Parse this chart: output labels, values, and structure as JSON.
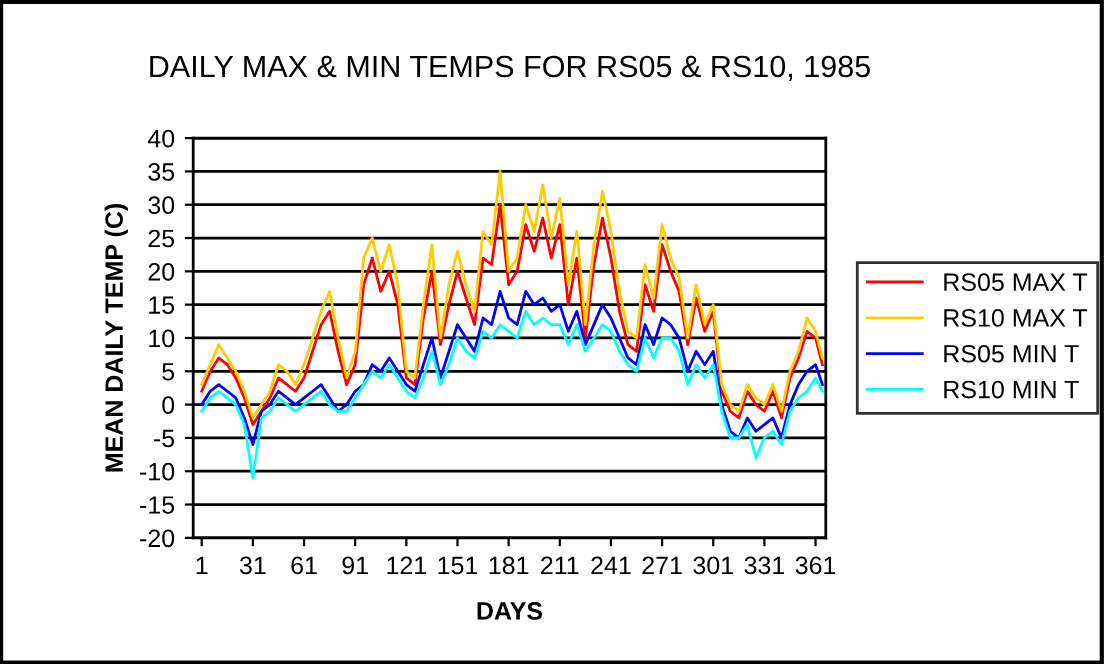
{
  "chart_data": {
    "type": "line",
    "title": "DAILY MAX & MIN TEMPS FOR RS05 & RS10, 1985",
    "xlabel": "DAYS",
    "ylabel": "MEAN DAILY TEMP (C)",
    "x": [
      1,
      6,
      11,
      16,
      21,
      26,
      31,
      36,
      41,
      46,
      51,
      56,
      61,
      66,
      71,
      76,
      81,
      86,
      91,
      96,
      101,
      106,
      111,
      116,
      121,
      126,
      131,
      136,
      141,
      146,
      151,
      156,
      161,
      166,
      171,
      176,
      181,
      186,
      191,
      196,
      201,
      206,
      211,
      216,
      221,
      226,
      231,
      236,
      241,
      246,
      251,
      256,
      261,
      266,
      271,
      276,
      281,
      286,
      291,
      296,
      301,
      306,
      311,
      316,
      321,
      326,
      331,
      336,
      341,
      346,
      351,
      356,
      361,
      365
    ],
    "series": [
      {
        "name": "RS05 MAX T",
        "color": "#ff0000",
        "values": [
          2,
          5,
          7,
          6,
          4,
          1,
          -3,
          -1,
          1,
          4,
          3,
          2,
          4,
          8,
          12,
          14,
          8,
          3,
          6,
          18,
          22,
          17,
          20,
          15,
          4,
          3,
          13,
          20,
          9,
          15,
          20,
          16,
          12,
          22,
          21,
          30,
          18,
          20,
          27,
          23,
          28,
          22,
          27,
          15,
          22,
          10,
          21,
          28,
          22,
          14,
          9,
          8,
          18,
          14,
          24,
          20,
          17,
          9,
          16,
          11,
          14,
          2,
          -1,
          -2,
          2,
          0,
          -1,
          2,
          -2,
          4,
          7,
          11,
          10,
          6
        ]
      },
      {
        "name": "RS10 MAX T",
        "color": "#ffcc00",
        "values": [
          3,
          6,
          9,
          7,
          5,
          2,
          -2,
          0,
          2,
          6,
          5,
          3,
          6,
          10,
          14,
          17,
          10,
          4,
          8,
          22,
          25,
          20,
          24,
          18,
          5,
          4,
          15,
          24,
          10,
          18,
          23,
          18,
          14,
          26,
          24,
          35,
          20,
          22,
          30,
          26,
          33,
          25,
          31,
          18,
          26,
          12,
          24,
          32,
          26,
          17,
          11,
          10,
          21,
          16,
          27,
          22,
          19,
          10,
          18,
          12,
          15,
          3,
          0,
          -1,
          3,
          1,
          0,
          3,
          -1,
          5,
          8,
          13,
          11,
          7
        ]
      },
      {
        "name": "RS05 MIN T",
        "color": "#0000ff",
        "values": [
          0,
          2,
          3,
          2,
          1,
          -2,
          -6,
          -1,
          0,
          2,
          1,
          0,
          1,
          2,
          3,
          1,
          -1,
          0,
          2,
          3,
          6,
          5,
          7,
          5,
          3,
          2,
          6,
          10,
          4,
          8,
          12,
          10,
          8,
          13,
          12,
          17,
          13,
          12,
          17,
          15,
          16,
          14,
          15,
          11,
          14,
          9,
          12,
          15,
          13,
          10,
          7,
          6,
          12,
          9,
          13,
          12,
          10,
          5,
          8,
          6,
          8,
          0,
          -4,
          -5,
          -2,
          -4,
          -3,
          -2,
          -5,
          0,
          3,
          5,
          6,
          3
        ]
      },
      {
        "name": "RS10 MIN T",
        "color": "#00ffff",
        "values": [
          -1,
          1,
          2,
          1,
          0,
          -3,
          -11,
          -2,
          -1,
          1,
          0,
          -1,
          0,
          1,
          2,
          0,
          -1,
          -1,
          1,
          3,
          5,
          4,
          6,
          4,
          2,
          1,
          4,
          8,
          3,
          6,
          10,
          8,
          7,
          11,
          10,
          12,
          11,
          10,
          14,
          12,
          13,
          12,
          12,
          9,
          12,
          8,
          10,
          12,
          11,
          8,
          6,
          5,
          10,
          7,
          10,
          10,
          8,
          3,
          6,
          4,
          6,
          -1,
          -5,
          -5,
          -3,
          -8,
          -5,
          -4,
          -6,
          -1,
          1,
          2,
          4,
          2
        ]
      }
    ],
    "xlim": [
      -4,
      367
    ],
    "xticks": [
      1,
      31,
      61,
      91,
      121,
      151,
      181,
      211,
      241,
      271,
      301,
      331,
      361
    ],
    "ylim": [
      -20,
      40
    ],
    "yticks": [
      -20,
      -15,
      -10,
      -5,
      0,
      5,
      10,
      15,
      20,
      25,
      30,
      35,
      40
    ],
    "grid": "y",
    "legend": "right"
  }
}
